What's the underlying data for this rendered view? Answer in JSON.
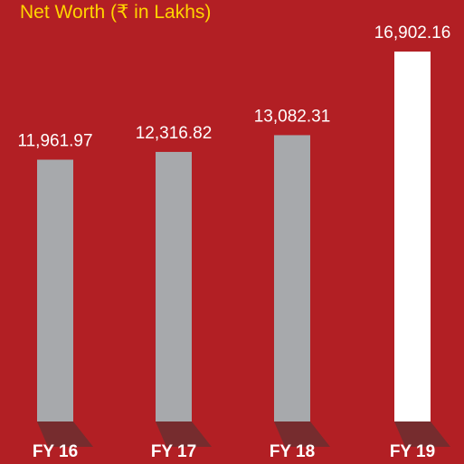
{
  "chart_data": {
    "type": "bar",
    "title": "Net Worth (₹ in Lakhs)",
    "categories": [
      "FY 16",
      "FY 17",
      "FY 18",
      "FY 19"
    ],
    "values": [
      11961.97,
      12316.82,
      13082.31,
      16902.16
    ],
    "value_labels": [
      "11,961.97",
      "12,316.82",
      "13,082.31",
      "16,902.16"
    ],
    "colors": [
      "#a7a9ac",
      "#a7a9ac",
      "#a7a9ac",
      "#ffffff"
    ],
    "background": "#b21f24",
    "title_color": "#ffd400"
  }
}
